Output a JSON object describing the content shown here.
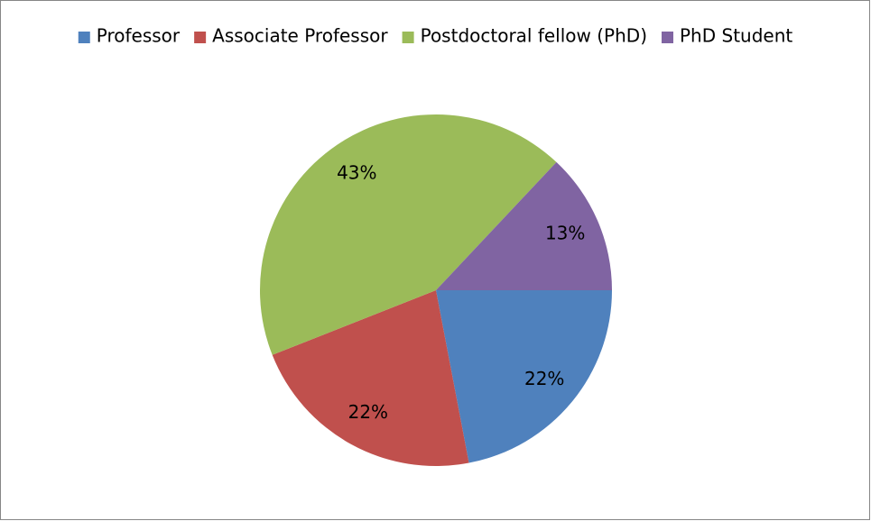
{
  "chart_data": {
    "type": "pie",
    "categories": [
      "Professor",
      "Associate Professor",
      "Postdoctoral fellow (PhD)",
      "PhD Student"
    ],
    "values": [
      22,
      22,
      43,
      13
    ],
    "value_labels": [
      "22%",
      "22%",
      "43%",
      "13%"
    ],
    "colors": [
      "#4f81bd",
      "#c0504d",
      "#9bbb59",
      "#8064a2"
    ],
    "legend": "top"
  }
}
